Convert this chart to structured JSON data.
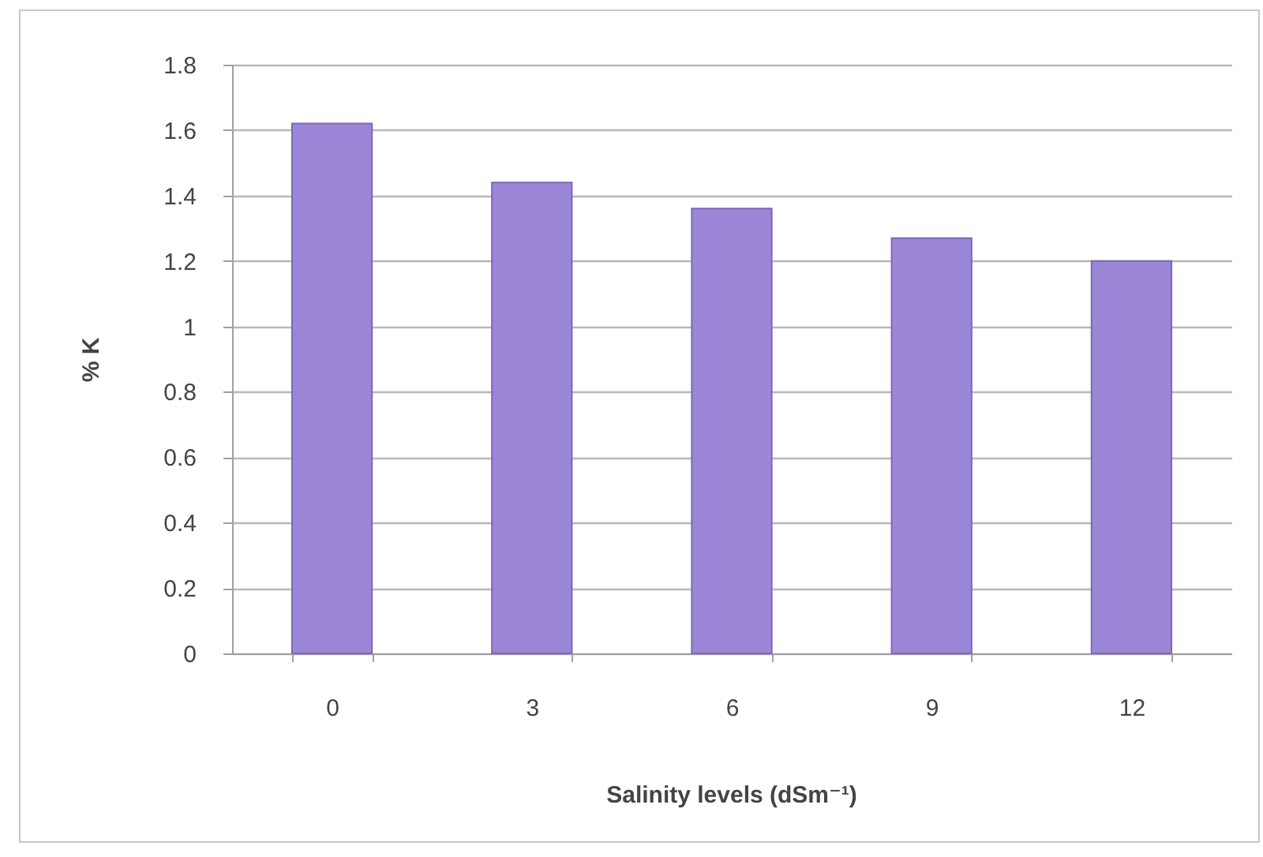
{
  "chart_data": {
    "type": "bar",
    "xlabel": "Salinity levels (dSm⁻¹)",
    "ylabel": "% K",
    "categories": [
      "0",
      "3",
      "6",
      "9",
      "12"
    ],
    "values": [
      1.62,
      1.44,
      1.36,
      1.27,
      1.2
    ],
    "color": "#9c86d8",
    "ylim": [
      0,
      1.8
    ],
    "yticks": [
      0,
      0.2,
      0.4,
      0.6,
      0.8,
      1,
      1.2,
      1.4,
      1.6,
      1.8
    ],
    "grid": "y"
  }
}
